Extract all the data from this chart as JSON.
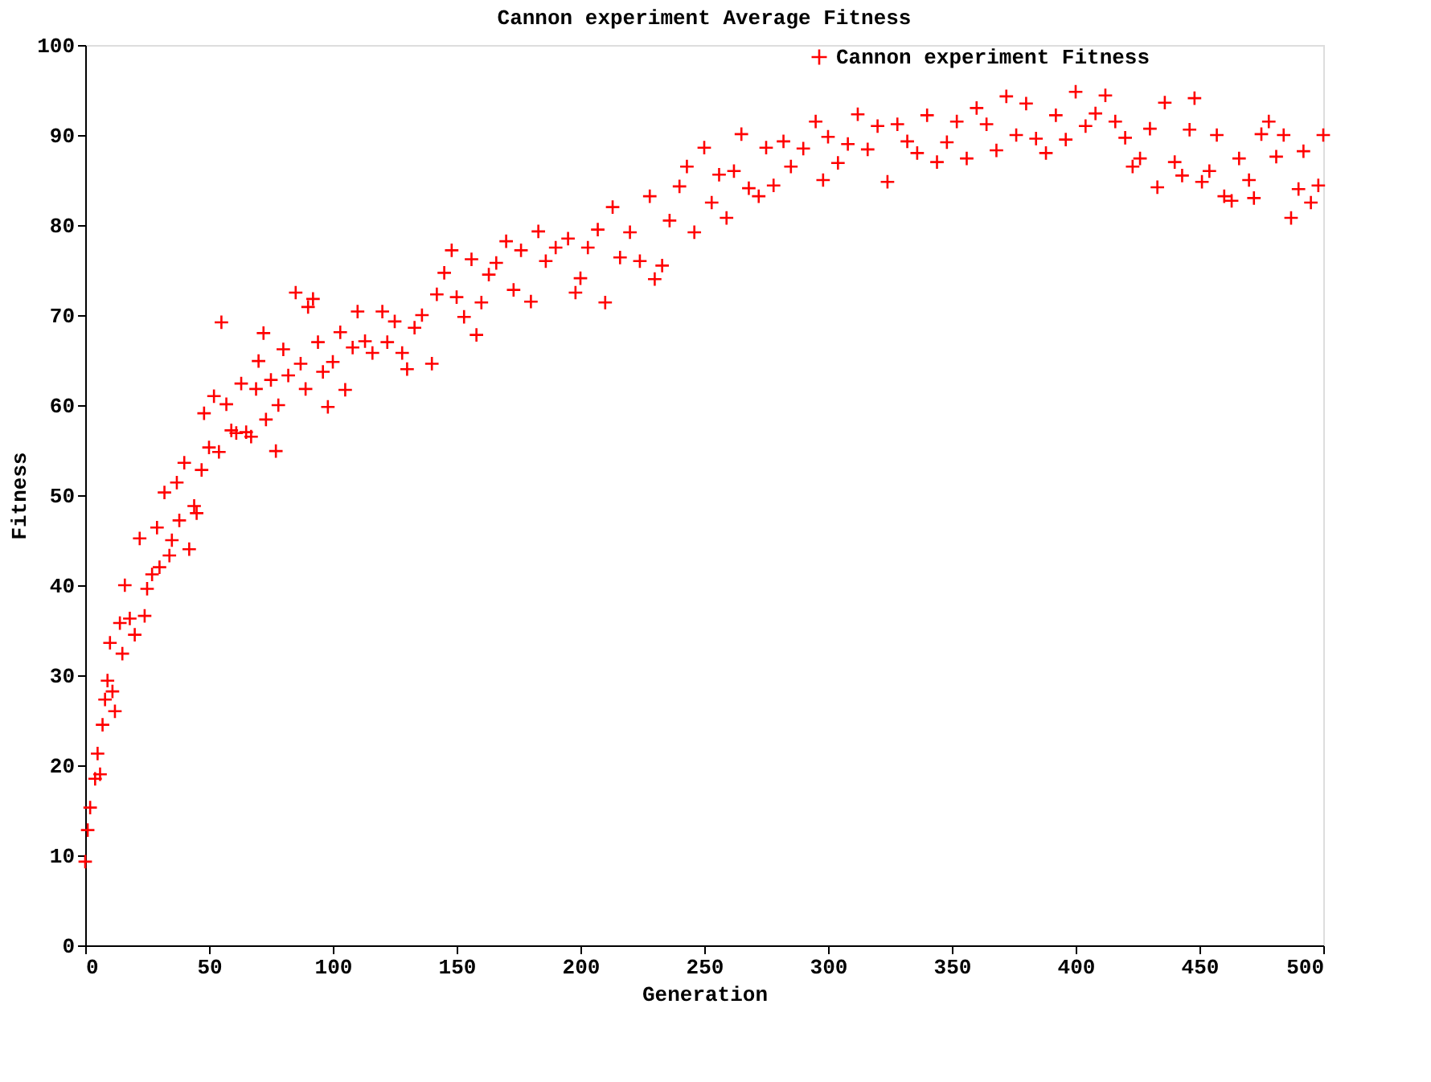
{
  "chart_data": {
    "type": "scatter",
    "title": "Cannon experiment Average Fitness",
    "xlabel": "Generation",
    "ylabel": "Fitness",
    "xlim": [
      0,
      500
    ],
    "xticks": [
      0,
      50,
      100,
      150,
      200,
      250,
      300,
      350,
      400,
      450,
      500
    ],
    "ylim": [
      0,
      100
    ],
    "yticks": [
      0,
      10,
      20,
      30,
      40,
      50,
      60,
      70,
      80,
      90,
      100
    ],
    "grid": false,
    "legend": "top right",
    "marker": "cross",
    "series": [
      {
        "name": "Cannon experiment Fitness",
        "color": "#ff0000",
        "x": [
          0,
          1,
          2,
          4,
          5,
          6,
          7,
          8,
          9,
          10,
          11,
          12,
          14,
          15,
          16,
          18,
          20,
          22,
          24,
          25,
          27,
          29,
          30,
          32,
          34,
          35,
          37,
          38,
          40,
          42,
          44,
          45,
          47,
          48,
          50,
          52,
          54,
          55,
          57,
          59,
          61,
          63,
          65,
          67,
          69,
          70,
          72,
          73,
          75,
          77,
          78,
          80,
          82,
          85,
          87,
          89,
          90,
          92,
          94,
          96,
          98,
          100,
          103,
          105,
          108,
          110,
          113,
          116,
          120,
          122,
          125,
          128,
          130,
          133,
          136,
          140,
          142,
          145,
          148,
          150,
          153,
          156,
          158,
          160,
          163,
          166,
          170,
          173,
          176,
          180,
          183,
          186,
          190,
          195,
          198,
          200,
          203,
          207,
          210,
          213,
          216,
          220,
          224,
          228,
          230,
          233,
          236,
          240,
          243,
          246,
          250,
          253,
          256,
          259,
          262,
          265,
          268,
          272,
          275,
          278,
          282,
          285,
          290,
          295,
          298,
          300,
          304,
          308,
          312,
          316,
          320,
          324,
          328,
          332,
          336,
          340,
          344,
          348,
          352,
          356,
          360,
          364,
          368,
          372,
          376,
          380,
          384,
          388,
          392,
          396,
          400,
          404,
          408,
          412,
          416,
          420,
          423,
          426,
          430,
          433,
          436,
          440,
          443,
          446,
          448,
          451,
          454,
          457,
          460,
          463,
          466,
          470,
          472,
          475,
          478,
          481,
          484,
          487,
          490,
          492,
          495,
          498,
          500
        ],
        "values": [
          9.3,
          12.8,
          15.3,
          18.5,
          21.3,
          19,
          24.5,
          27.3,
          29.4,
          33.6,
          28.2,
          26,
          35.8,
          32.4,
          40,
          36.3,
          34.5,
          45.2,
          36.6,
          39.6,
          41.2,
          46.4,
          42,
          50.3,
          43.3,
          45,
          51.4,
          47.2,
          53.6,
          44,
          48.8,
          48,
          52.8,
          59.1,
          55.3,
          61,
          54.8,
          69.2,
          60.1,
          57.2,
          56.9,
          62.4,
          57,
          56.5,
          61.8,
          64.9,
          68,
          58.4,
          62.8,
          54.9,
          60,
          66.2,
          63.3,
          72.5,
          64.6,
          61.8,
          70.9,
          71.8,
          67,
          63.7,
          59.8,
          64.8,
          68.1,
          61.7,
          66.4,
          70.4,
          67.1,
          65.8,
          70.4,
          67,
          69.3,
          65.8,
          64,
          68.6,
          70,
          64.6,
          72.3,
          74.7,
          77.2,
          72,
          69.8,
          76.2,
          67.8,
          71.4,
          74.5,
          75.8,
          78.2,
          72.8,
          77.2,
          71.5,
          79.3,
          76,
          77.5,
          78.5,
          72.5,
          74.1,
          77.5,
          79.5,
          71.4,
          82,
          76.4,
          79.2,
          76,
          83.2,
          74,
          75.5,
          80.5,
          84.3,
          86.5,
          79.2,
          88.6,
          82.5,
          85.6,
          80.8,
          86,
          90.1,
          84.1,
          83.2,
          88.6,
          84.4,
          89.3,
          86.5,
          88.5,
          91.5,
          85,
          89.8,
          86.9,
          89,
          92.3,
          88.4,
          91,
          84.8,
          91.2,
          89.3,
          88,
          92.2,
          87,
          89.2,
          91.5,
          87.4,
          93,
          91.2,
          88.3,
          94.3,
          90,
          93.5,
          89.6,
          88,
          92.2,
          89.5,
          94.8,
          91,
          92.4,
          94.4,
          91.5,
          89.7,
          86.5,
          87.4,
          90.7,
          84.2,
          93.6,
          87,
          85.5,
          90.6,
          94.1,
          84.8,
          86,
          90,
          83.2,
          82.7,
          87.4,
          85,
          83,
          90.1,
          91.5,
          87.6,
          90,
          80.8,
          84,
          88.2,
          82.5,
          84.4,
          90
        ]
      }
    ]
  }
}
